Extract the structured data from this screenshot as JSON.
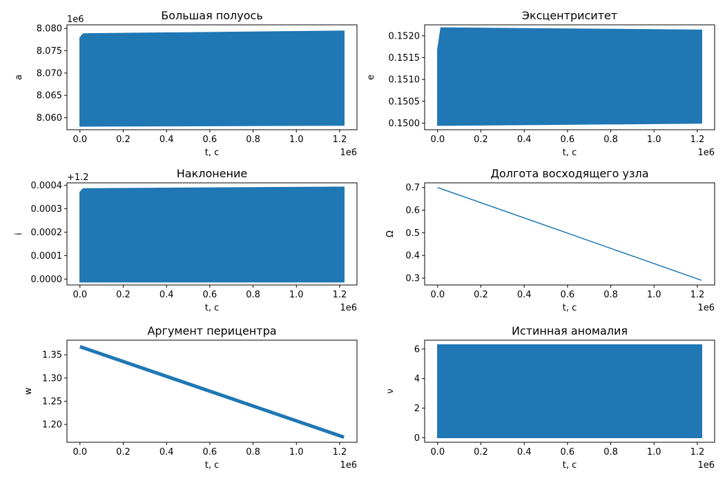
{
  "chart_data": [
    {
      "type": "line",
      "title": "Большая полуось",
      "xlabel": "t, c",
      "ylabel": "a",
      "x_offset_text": "1e6",
      "y_offset_text": "1e6",
      "xlim": [
        -0.06,
        1.28
      ],
      "ylim": [
        8.0573,
        8.0808
      ],
      "xticks": [
        0.0,
        0.2,
        0.4,
        0.6,
        0.8,
        1.0,
        1.2
      ],
      "xtick_labels": [
        "0.0",
        "0.2",
        "0.4",
        "0.6",
        "0.8",
        "1.0",
        "1.2"
      ],
      "yticks": [
        8.06,
        8.065,
        8.07,
        8.075,
        8.08
      ],
      "ytick_labels": [
        "8.060",
        "8.065",
        "8.070",
        "8.075",
        "8.080"
      ],
      "series": [
        {
          "color": "#1f77b4",
          "style": "oscillation-band",
          "x": [
            0.0,
            0.015,
            1.22
          ],
          "lower": [
            8.0581,
            8.0581,
            8.0583
          ],
          "upper": [
            8.0779,
            8.0788,
            8.0794
          ]
        }
      ]
    },
    {
      "type": "line",
      "title": "Эксцентриситет",
      "xlabel": "t, c",
      "ylabel": "e",
      "x_offset_text": "1e6",
      "xlim": [
        -0.06,
        1.28
      ],
      "ylim": [
        0.14985,
        0.15225
      ],
      "xticks": [
        0.0,
        0.2,
        0.4,
        0.6,
        0.8,
        1.0,
        1.2
      ],
      "xtick_labels": [
        "0.0",
        "0.2",
        "0.4",
        "0.6",
        "0.8",
        "1.0",
        "1.2"
      ],
      "yticks": [
        0.15,
        0.1505,
        0.151,
        0.1515,
        0.152
      ],
      "ytick_labels": [
        "0.1500",
        "0.1505",
        "0.1510",
        "0.1515",
        "0.1520"
      ],
      "series": [
        {
          "color": "#1f77b4",
          "style": "oscillation-band",
          "x": [
            0.0,
            0.015,
            1.22
          ],
          "lower": [
            0.14995,
            0.14995,
            0.15
          ],
          "upper": [
            0.15168,
            0.15218,
            0.15213
          ]
        }
      ]
    },
    {
      "type": "line",
      "title": "Наклонение",
      "xlabel": "t, c",
      "ylabel": "i",
      "x_offset_text": "1e6",
      "y_offset_text": "+1.2",
      "xlim": [
        -0.06,
        1.28
      ],
      "ylim": [
        -2.5e-05,
        0.00041
      ],
      "xticks": [
        0.0,
        0.2,
        0.4,
        0.6,
        0.8,
        1.0,
        1.2
      ],
      "xtick_labels": [
        "0.0",
        "0.2",
        "0.4",
        "0.6",
        "0.8",
        "1.0",
        "1.2"
      ],
      "yticks": [
        0.0,
        0.0001,
        0.0002,
        0.0003,
        0.0004
      ],
      "ytick_labels": [
        "0.0000",
        "0.0001",
        "0.0002",
        "0.0003",
        "0.0004"
      ],
      "series": [
        {
          "color": "#1f77b4",
          "style": "oscillation-band",
          "x": [
            0.0,
            0.015,
            1.22
          ],
          "lower": [
            -1.2e-05,
            -1.2e-05,
            -1.2e-05
          ],
          "upper": [
            0.00037,
            0.000385,
            0.000392
          ]
        }
      ]
    },
    {
      "type": "line",
      "title": "Долгота восходящего узла",
      "xlabel": "t, c",
      "ylabel": "Ω",
      "x_offset_text": "1e6",
      "xlim": [
        -0.06,
        1.28
      ],
      "ylim": [
        0.2695,
        0.7205
      ],
      "xticks": [
        0.0,
        0.2,
        0.4,
        0.6,
        0.8,
        1.0,
        1.2
      ],
      "xtick_labels": [
        "0.0",
        "0.2",
        "0.4",
        "0.6",
        "0.8",
        "1.0",
        "1.2"
      ],
      "yticks": [
        0.3,
        0.4,
        0.5,
        0.6,
        0.7
      ],
      "ytick_labels": [
        "0.3",
        "0.4",
        "0.5",
        "0.6",
        "0.7"
      ],
      "series": [
        {
          "color": "#1f77b4",
          "style": "line",
          "x": [
            0.0,
            1.22
          ],
          "y": [
            0.7,
            0.29
          ]
        }
      ]
    },
    {
      "type": "line",
      "title": "Аргумент перицентра",
      "xlabel": "t, c",
      "ylabel": "w",
      "x_offset_text": "1e6",
      "xlim": [
        -0.06,
        1.28
      ],
      "ylim": [
        1.1615,
        1.3815
      ],
      "xticks": [
        0.0,
        0.2,
        0.4,
        0.6,
        0.8,
        1.0,
        1.2
      ],
      "xtick_labels": [
        "0.0",
        "0.2",
        "0.4",
        "0.6",
        "0.8",
        "1.0",
        "1.2"
      ],
      "yticks": [
        1.2,
        1.25,
        1.3,
        1.35
      ],
      "ytick_labels": [
        "1.20",
        "1.25",
        "1.30",
        "1.35"
      ],
      "series": [
        {
          "color": "#1f77b4",
          "style": "thick-line",
          "x": [
            0.0,
            1.22
          ],
          "y": [
            1.3675,
            1.1725
          ]
        }
      ]
    },
    {
      "type": "line",
      "title": "Истинная аномалия",
      "xlabel": "t, c",
      "ylabel": "ν",
      "x_offset_text": "1e6",
      "xlim": [
        -0.06,
        1.28
      ],
      "ylim": [
        -0.3142,
        6.5973
      ],
      "xticks": [
        0.0,
        0.2,
        0.4,
        0.6,
        0.8,
        1.0,
        1.2
      ],
      "xtick_labels": [
        "0.0",
        "0.2",
        "0.4",
        "0.6",
        "0.8",
        "1.0",
        "1.2"
      ],
      "yticks": [
        0,
        2,
        4,
        6
      ],
      "ytick_labels": [
        "0",
        "2",
        "4",
        "6"
      ],
      "series": [
        {
          "color": "#1f77b4",
          "style": "oscillation-band",
          "x": [
            0.0,
            1.22
          ],
          "lower": [
            0.0,
            0.0
          ],
          "upper": [
            6.283,
            6.283
          ]
        }
      ]
    }
  ]
}
